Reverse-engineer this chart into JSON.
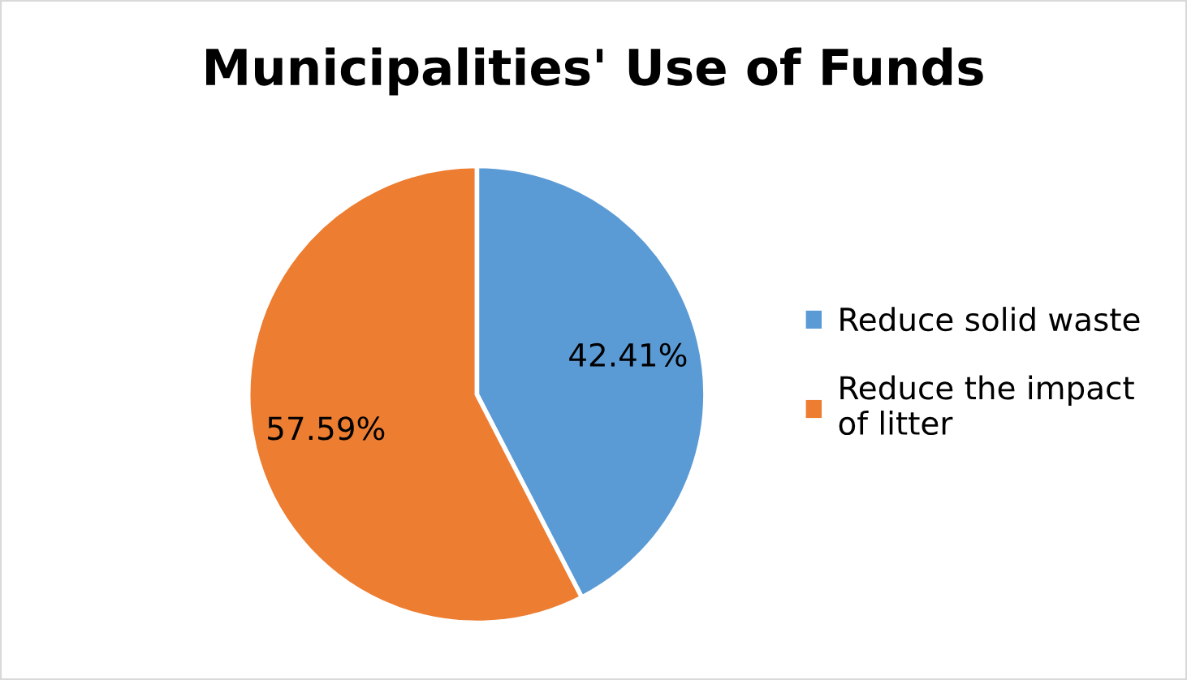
{
  "chart_data": {
    "type": "pie",
    "title": "Municipalities' Use of Funds",
    "categories": [
      "Reduce solid waste",
      "Reduce the impact of litter"
    ],
    "values": [
      42.41,
      57.59
    ],
    "colors": [
      "#5b9bd5",
      "#ed7d31"
    ],
    "value_labels": [
      "42.41%",
      "57.59%"
    ],
    "legend": "right"
  }
}
